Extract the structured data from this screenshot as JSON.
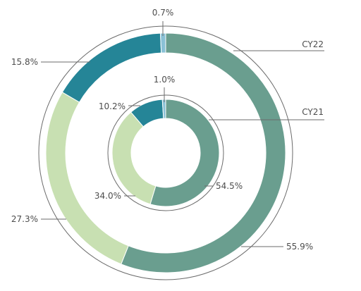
{
  "chart_data": {
    "type": "pie",
    "variant": "concentric-donut",
    "rings": [
      {
        "name": "CY22",
        "slices": [
          {
            "value": 55.9,
            "label": "55.9%",
            "color": "#6a9e8f"
          },
          {
            "value": 27.3,
            "label": "27.3%",
            "color": "#c8e0b2"
          },
          {
            "value": 15.8,
            "label": "15.8%",
            "color": "#258597"
          },
          {
            "value": 0.7,
            "label": "0.7%",
            "color": "#8ac1d6"
          }
        ]
      },
      {
        "name": "CY21",
        "slices": [
          {
            "value": 54.5,
            "label": "54.5%",
            "color": "#6a9e8f"
          },
          {
            "value": 34.0,
            "label": "34.0%",
            "color": "#c8e0b2"
          },
          {
            "value": 10.2,
            "label": "10.2%",
            "color": "#258597"
          },
          {
            "value": 1.0,
            "label": "1.0%",
            "color": "#8ac1d6"
          }
        ]
      }
    ],
    "direction": "clockwise",
    "start": "top",
    "legend": "none"
  }
}
